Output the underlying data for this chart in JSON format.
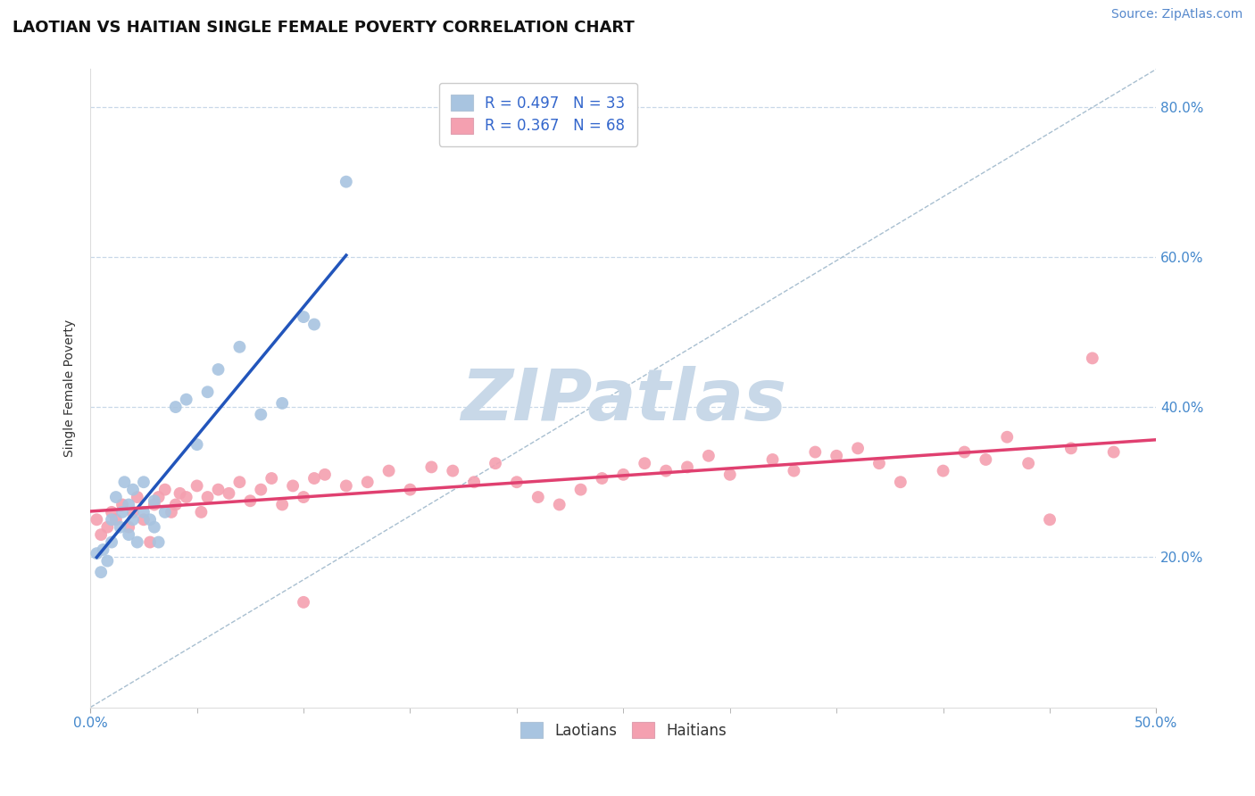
{
  "title": "LAOTIAN VS HAITIAN SINGLE FEMALE POVERTY CORRELATION CHART",
  "source_text": "Source: ZipAtlas.com",
  "ylabel": "Single Female Poverty",
  "xlim": [
    0.0,
    50.0
  ],
  "ylim": [
    0.0,
    85.0
  ],
  "x_tick_positions": [
    0.0,
    50.0
  ],
  "x_tick_labels": [
    "0.0%",
    "50.0%"
  ],
  "y_tick_positions": [
    20.0,
    40.0,
    60.0,
    80.0
  ],
  "y_tick_labels": [
    "20.0%",
    "40.0%",
    "60.0%",
    "80.0%"
  ],
  "laotian_color": "#a8c4e0",
  "haitian_color": "#f4a0b0",
  "laotian_line_color": "#2255bb",
  "haitian_line_color": "#e04070",
  "diagonal_color": "#a8bfd0",
  "R_laotian": 0.497,
  "N_laotian": 33,
  "R_haitian": 0.367,
  "N_haitian": 68,
  "laotian_x": [
    0.3,
    0.5,
    0.6,
    0.8,
    1.0,
    1.0,
    1.2,
    1.4,
    1.5,
    1.6,
    1.8,
    1.8,
    2.0,
    2.0,
    2.2,
    2.5,
    2.5,
    2.8,
    3.0,
    3.0,
    3.2,
    3.5,
    4.0,
    4.5,
    5.0,
    5.5,
    6.0,
    7.0,
    8.0,
    9.0,
    10.0,
    10.5,
    12.0
  ],
  "laotian_y": [
    20.5,
    18.0,
    21.0,
    19.5,
    25.0,
    22.0,
    28.0,
    24.0,
    26.0,
    30.0,
    23.0,
    27.0,
    25.0,
    29.0,
    22.0,
    30.0,
    26.0,
    25.0,
    24.0,
    27.5,
    22.0,
    26.0,
    40.0,
    41.0,
    35.0,
    42.0,
    45.0,
    48.0,
    39.0,
    40.5,
    52.0,
    51.0,
    70.0
  ],
  "haitian_x": [
    0.3,
    0.5,
    0.8,
    1.0,
    1.2,
    1.5,
    1.8,
    2.0,
    2.2,
    2.5,
    2.8,
    3.0,
    3.2,
    3.5,
    3.8,
    4.0,
    4.2,
    4.5,
    5.0,
    5.2,
    5.5,
    6.0,
    6.5,
    7.0,
    7.5,
    8.0,
    8.5,
    9.0,
    9.5,
    10.0,
    10.5,
    11.0,
    12.0,
    13.0,
    14.0,
    15.0,
    16.0,
    17.0,
    18.0,
    19.0,
    20.0,
    21.0,
    22.0,
    23.0,
    24.0,
    25.0,
    26.0,
    27.0,
    28.0,
    29.0,
    30.0,
    32.0,
    33.0,
    34.0,
    35.0,
    36.0,
    37.0,
    38.0,
    40.0,
    41.0,
    42.0,
    43.0,
    44.0,
    45.0,
    46.0,
    47.0,
    48.0,
    10.0
  ],
  "haitian_y": [
    25.0,
    23.0,
    24.0,
    26.0,
    25.0,
    27.0,
    24.0,
    26.0,
    28.0,
    25.0,
    22.0,
    27.0,
    28.0,
    29.0,
    26.0,
    27.0,
    28.5,
    28.0,
    29.5,
    26.0,
    28.0,
    29.0,
    28.5,
    30.0,
    27.5,
    29.0,
    30.5,
    27.0,
    29.5,
    28.0,
    30.5,
    31.0,
    29.5,
    30.0,
    31.5,
    29.0,
    32.0,
    31.5,
    30.0,
    32.5,
    30.0,
    28.0,
    27.0,
    29.0,
    30.5,
    31.0,
    32.5,
    31.5,
    32.0,
    33.5,
    31.0,
    33.0,
    31.5,
    34.0,
    33.5,
    34.5,
    32.5,
    30.0,
    31.5,
    34.0,
    33.0,
    36.0,
    32.5,
    25.0,
    34.5,
    46.5,
    34.0,
    14.0
  ],
  "watermark_text": "ZIPatlas",
  "watermark_color": "#c8d8e8",
  "background_color": "#ffffff",
  "grid_color": "#c8d8e8",
  "title_fontsize": 13,
  "axis_label_fontsize": 10,
  "tick_fontsize": 11,
  "legend_fontsize": 12,
  "source_fontsize": 10,
  "legend_text_color": "#3366cc",
  "tick_color_y": "#4488cc",
  "tick_color_x": "#4488cc"
}
